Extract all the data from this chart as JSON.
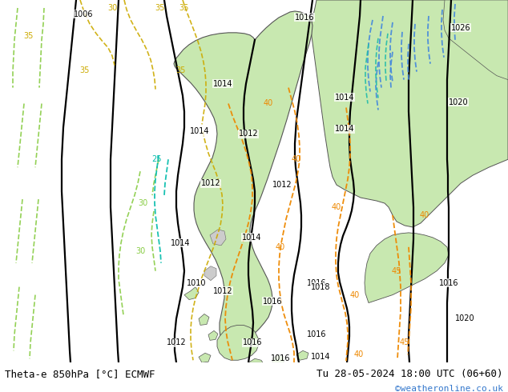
{
  "title_left": "Theta-e 850hPa [°C] ECMWF",
  "title_right": "Tu 28-05-2024 18:00 UTC (06+60)",
  "watermark": "©weatheronline.co.uk",
  "bg_sea_color": "#e8e8e8",
  "land_green": "#c8e8b0",
  "land_gray": "#c8c8c8",
  "bottom_bar_color": "#ffffff",
  "text_color": "#000000",
  "watermark_color": "#3377cc",
  "font_size_title": 9,
  "font_size_watermark": 8,
  "fig_width": 6.34,
  "fig_height": 4.9,
  "dpi": 100
}
